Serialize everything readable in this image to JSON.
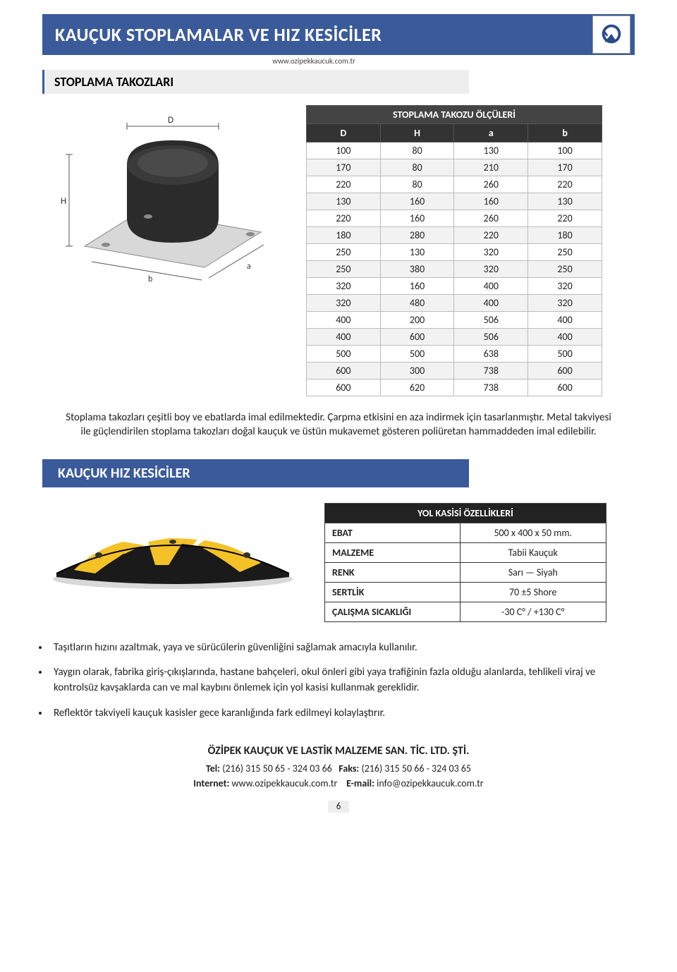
{
  "header": {
    "title": "KAUÇUK STOPLAMALAR VE HIZ KESİCİLER",
    "website": "www.ozipekkaucuk.com.tr"
  },
  "section1": {
    "title": "STOPLAMA TAKOZLARI",
    "table_title": "STOPLAMA TAKOZU ÖLÇÜLERİ",
    "columns": [
      "D",
      "H",
      "a",
      "b"
    ],
    "rows": [
      [
        "100",
        "80",
        "130",
        "100"
      ],
      [
        "170",
        "80",
        "210",
        "170"
      ],
      [
        "220",
        "80",
        "260",
        "220"
      ],
      [
        "130",
        "160",
        "160",
        "130"
      ],
      [
        "220",
        "160",
        "260",
        "220"
      ],
      [
        "180",
        "280",
        "220",
        "180"
      ],
      [
        "250",
        "130",
        "320",
        "250"
      ],
      [
        "250",
        "380",
        "320",
        "250"
      ],
      [
        "320",
        "160",
        "400",
        "320"
      ],
      [
        "320",
        "480",
        "400",
        "320"
      ],
      [
        "400",
        "200",
        "506",
        "400"
      ],
      [
        "400",
        "600",
        "506",
        "400"
      ],
      [
        "500",
        "500",
        "638",
        "500"
      ],
      [
        "600",
        "300",
        "738",
        "600"
      ],
      [
        "600",
        "620",
        "738",
        "600"
      ]
    ],
    "paragraph": "Stoplama takozları çeşitli boy ve ebatlarda imal edilmektedir. Çarpma etkisini en aza indirmek için tasarlanmıştır. Metal takviyesi ile güçlendirilen stoplama takozları doğal kauçuk ve üstün mukavemet gösteren poliüretan hammaddeden imal edilebilir."
  },
  "section2": {
    "title": "KAUÇUK HIZ KESİCİLER",
    "spec_title": "YOL KASİSİ ÖZELLİKLERİ",
    "specs": [
      {
        "label": "EBAT",
        "value": "500 x 400 x 50 mm."
      },
      {
        "label": "MALZEME",
        "value": "Tabii Kauçuk"
      },
      {
        "label": "RENK",
        "value": "Sarı — Siyah"
      },
      {
        "label": "SERTLİK",
        "value": "70 ±5 Shore"
      },
      {
        "label": "ÇALIŞMA SICAKLIĞI",
        "value": "-30 C° / +130 C°"
      }
    ],
    "bullets": [
      "Taşıtların hızını azaltmak, yaya ve sürücülerin güvenliğini sağlamak amacıyla kullanılır.",
      "Yaygın olarak, fabrika giriş-çıkışlarında, hastane bahçeleri, okul önleri gibi yaya trafiğinin fazla olduğu alanlarda, tehlikeli viraj ve kontrolsüz kavşaklarda can ve mal kaybını önlemek için yol kasisi kullanmak gereklidir.",
      "Reflektör takviyeli kauçuk kasisler gece karanlığında fark edilmeyi kolaylaştırır."
    ]
  },
  "footer": {
    "company": "ÖZİPEK KAUÇUK VE LASTİK MALZEME SAN. TİC. LTD. ŞTİ.",
    "tel_label": "Tel:",
    "tel": "(216) 315 50 65 - 324 03 66",
    "faks_label": "Faks:",
    "faks": "(216) 315 50 66 - 324 03 65",
    "internet_label": "Internet:",
    "internet": "www.ozipekkaucuk.com.tr",
    "email_label": "E-mail:",
    "email": "info@ozipekkaucuk.com.tr",
    "page_number": "6"
  },
  "colors": {
    "brand_blue": "#3a5a9a",
    "table_head": "#333333",
    "yellow": "#f4c226",
    "black": "#1a1a1a"
  }
}
